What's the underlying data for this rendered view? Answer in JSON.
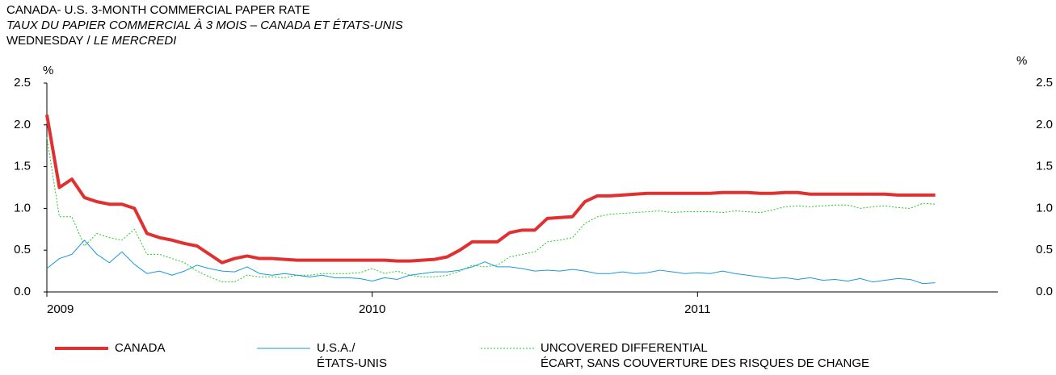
{
  "chart_data": {
    "type": "line",
    "title": "CANADA- U.S. 3-MONTH COMMERCIAL PAPER RATE",
    "subtitle": "TAUX DU PAPIER COMMERCIAL À 3 MOIS – CANADA ET ÉTATS-UNIS",
    "note": "WEDNESDAY /",
    "note_fr": "LE MERCREDI",
    "ylabel": "%",
    "y2label": "%",
    "categories": [
      "2009",
      null,
      null,
      null,
      null,
      null,
      null,
      null,
      null,
      null,
      null,
      null,
      null,
      null,
      null,
      null,
      null,
      null,
      null,
      null,
      null,
      null,
      null,
      null,
      null,
      null,
      "2010",
      null,
      null,
      null,
      null,
      null,
      null,
      null,
      null,
      null,
      null,
      null,
      null,
      null,
      null,
      null,
      null,
      null,
      null,
      null,
      null,
      null,
      null,
      null,
      null,
      null,
      "2011",
      null,
      null,
      null,
      null,
      null,
      null,
      null,
      null,
      null,
      null,
      null,
      null,
      null,
      null,
      null,
      null,
      null,
      null,
      null,
      null,
      null,
      null,
      null
    ],
    "series": [
      {
        "name": "CANADA",
        "color": "#e03030",
        "width": 4,
        "style": "solid",
        "values": [
          2.12,
          1.25,
          1.35,
          1.13,
          1.08,
          1.05,
          1.05,
          1.0,
          0.7,
          0.65,
          0.62,
          0.58,
          0.55,
          0.45,
          0.35,
          0.4,
          0.43,
          0.4,
          0.4,
          0.39,
          0.38,
          0.38,
          0.38,
          0.38,
          0.38,
          0.38,
          0.38,
          0.38,
          0.37,
          0.37,
          0.38,
          0.39,
          0.42,
          0.5,
          0.6,
          0.6,
          0.6,
          0.71,
          0.74,
          0.74,
          0.88,
          0.89,
          0.9,
          1.08,
          1.15,
          1.15,
          1.16,
          1.17,
          1.18,
          1.18,
          1.18,
          1.18,
          1.18,
          1.18,
          1.19,
          1.19,
          1.19,
          1.18,
          1.18,
          1.19,
          1.19,
          1.17,
          1.17,
          1.17,
          1.17,
          1.17,
          1.17,
          1.17,
          1.16,
          1.16,
          1.16,
          1.16,
          null,
          null,
          null,
          null
        ]
      },
      {
        "name": "U.S.A./\nÉTATS-UNIS",
        "color": "#1a9ad6",
        "width": 1,
        "style": "solid",
        "values": [
          0.28,
          0.4,
          0.45,
          0.62,
          0.45,
          0.35,
          0.48,
          0.33,
          0.22,
          0.25,
          0.2,
          0.25,
          0.32,
          0.28,
          0.25,
          0.24,
          0.3,
          0.22,
          0.2,
          0.22,
          0.2,
          0.18,
          0.2,
          0.17,
          0.17,
          0.16,
          0.13,
          0.17,
          0.15,
          0.2,
          0.22,
          0.24,
          0.24,
          0.26,
          0.3,
          0.36,
          0.3,
          0.3,
          0.28,
          0.25,
          0.26,
          0.25,
          0.27,
          0.25,
          0.22,
          0.22,
          0.24,
          0.22,
          0.23,
          0.26,
          0.24,
          0.22,
          0.23,
          0.22,
          0.25,
          0.22,
          0.2,
          0.18,
          0.16,
          0.17,
          0.15,
          0.17,
          0.14,
          0.15,
          0.13,
          0.16,
          0.12,
          0.14,
          0.16,
          0.15,
          0.1,
          0.11,
          null,
          null,
          null,
          null
        ]
      },
      {
        "name": "UNCOVERED DIFFERENTIAL\nÉCART, SANS COUVERTURE DES RISQUES DE CHANGE",
        "color": "#22cc22",
        "width": 1,
        "style": "dotted",
        "values": [
          1.85,
          0.9,
          0.9,
          0.55,
          0.7,
          0.65,
          0.62,
          0.75,
          0.45,
          0.45,
          0.4,
          0.35,
          0.25,
          0.18,
          0.12,
          0.12,
          0.2,
          0.18,
          0.18,
          0.17,
          0.2,
          0.2,
          0.22,
          0.22,
          0.22,
          0.23,
          0.28,
          0.22,
          0.25,
          0.2,
          0.18,
          0.18,
          0.2,
          0.25,
          0.32,
          0.3,
          0.32,
          0.42,
          0.45,
          0.48,
          0.6,
          0.62,
          0.65,
          0.82,
          0.9,
          0.93,
          0.94,
          0.95,
          0.96,
          0.97,
          0.95,
          0.96,
          0.96,
          0.96,
          0.95,
          0.97,
          0.96,
          0.95,
          0.98,
          1.02,
          1.03,
          1.02,
          1.03,
          1.04,
          1.04,
          1.0,
          1.02,
          1.03,
          1.01,
          1.0,
          1.06,
          1.05,
          null,
          null,
          null,
          null
        ]
      }
    ],
    "ylim": [
      0,
      2.5
    ],
    "yticks": [
      {
        "value": 0,
        "label": "0.0"
      },
      {
        "value": 0.5,
        "label": "0.5"
      },
      {
        "value": 1,
        "label": "1.0"
      },
      {
        "value": 1.5,
        "label": "1.5"
      },
      {
        "value": 2,
        "label": "2.0"
      },
      {
        "value": 2.5,
        "label": "2.5"
      }
    ],
    "y2lim": [
      0,
      2.5
    ],
    "y2ticks": [
      {
        "value": 0,
        "label": "0.0"
      },
      {
        "value": 0.5,
        "label": "0.5"
      },
      {
        "value": 1,
        "label": "1.0"
      },
      {
        "value": 1.5,
        "label": "1.5"
      },
      {
        "value": 2,
        "label": "2.0"
      },
      {
        "value": 2.5,
        "label": "2.5"
      }
    ],
    "grid": false,
    "legend": "bottom"
  }
}
